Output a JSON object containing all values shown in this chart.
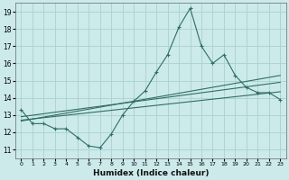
{
  "xlabel": "Humidex (Indice chaleur)",
  "bg_color": "#cceaea",
  "grid_color": "#aad0d0",
  "line_color": "#2e6e65",
  "xlim": [
    -0.5,
    23.5
  ],
  "ylim": [
    10.5,
    19.5
  ],
  "xticks": [
    0,
    1,
    2,
    3,
    4,
    5,
    6,
    7,
    8,
    9,
    10,
    11,
    12,
    13,
    14,
    15,
    16,
    17,
    18,
    19,
    20,
    21,
    22,
    23
  ],
  "yticks": [
    11,
    12,
    13,
    14,
    15,
    16,
    17,
    18,
    19
  ],
  "main_x": [
    0,
    1,
    2,
    3,
    4,
    5,
    6,
    7,
    8,
    9,
    10,
    11,
    12,
    13,
    14,
    15,
    16,
    17,
    18,
    19,
    20,
    21,
    22,
    23
  ],
  "main_y": [
    13.3,
    12.5,
    12.5,
    12.2,
    12.2,
    11.7,
    11.2,
    11.1,
    11.9,
    13.0,
    13.8,
    14.4,
    15.5,
    16.5,
    18.1,
    19.2,
    17.0,
    16.0,
    16.5,
    15.3,
    14.6,
    14.3,
    14.3,
    13.9
  ],
  "line2_x": [
    0,
    23
  ],
  "line2_y": [
    12.9,
    14.9
  ],
  "line3_x": [
    0,
    23
  ],
  "line3_y": [
    12.7,
    14.35
  ],
  "line4_x": [
    0,
    23
  ],
  "line4_y": [
    12.65,
    15.3
  ]
}
